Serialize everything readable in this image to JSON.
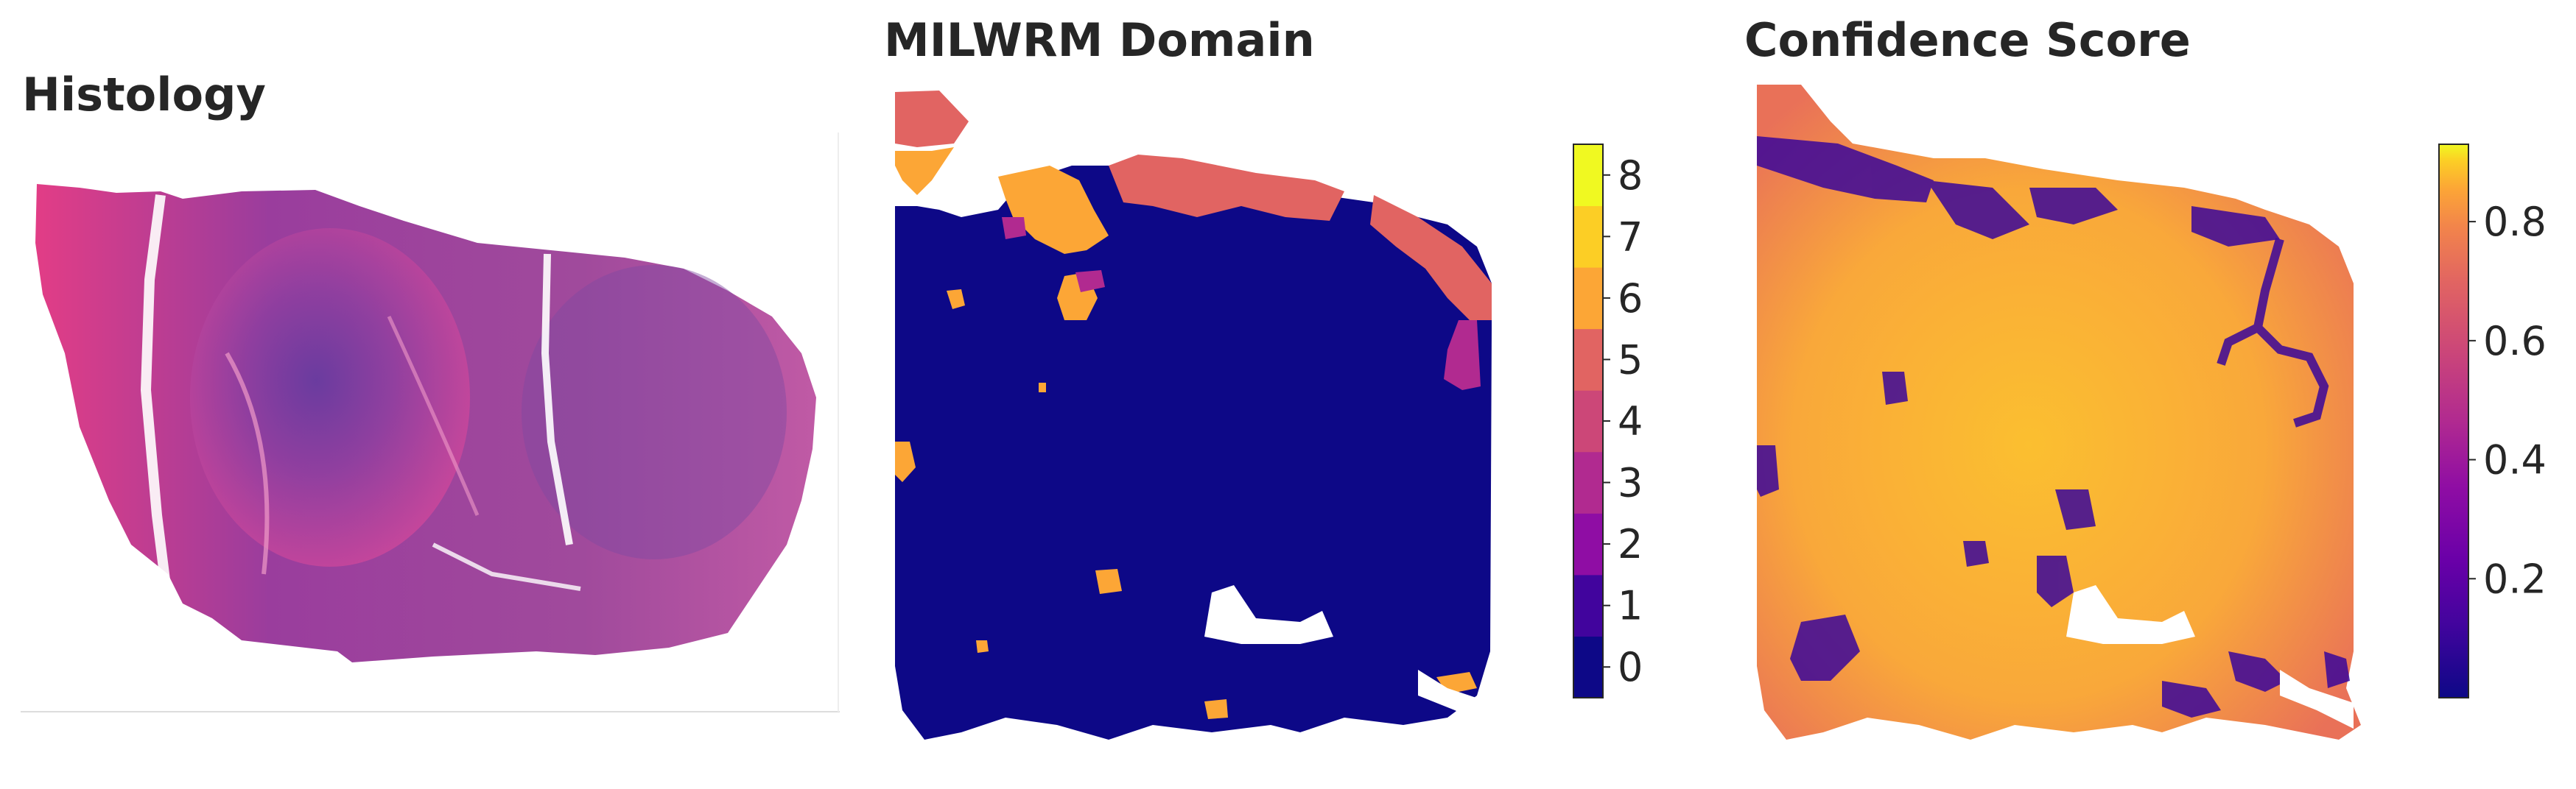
{
  "panels": {
    "histology": {
      "title": "Histology"
    },
    "domain": {
      "title": "MILWRM Domain",
      "colorbar_ticks": [
        "0",
        "1",
        "2",
        "3",
        "4",
        "5",
        "6",
        "7",
        "8"
      ],
      "colors": [
        "#0d0887",
        "#41049d",
        "#6a00a8",
        "#8f0da4",
        "#b12a90",
        "#cc4778",
        "#e16462",
        "#f2844b",
        "#fca636",
        "#fcce25",
        "#f0f921"
      ]
    },
    "confidence": {
      "title": "Confidence Score",
      "colorbar_ticks": [
        "0.2",
        "0.4",
        "0.6",
        "0.8"
      ],
      "colorbar_tick_values": [
        0.2,
        0.4,
        0.6,
        0.8
      ],
      "colorbar_range": [
        0.0,
        0.93
      ]
    }
  }
}
